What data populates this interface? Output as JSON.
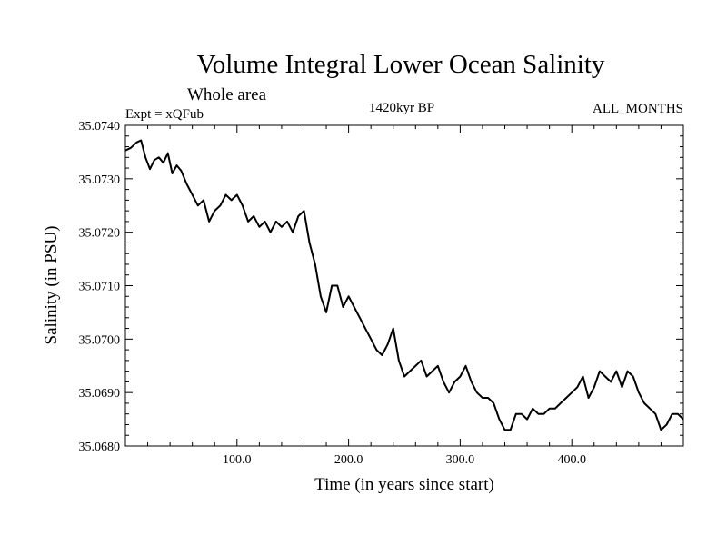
{
  "chart_data": {
    "type": "line",
    "title": "Volume Integral Lower Ocean Salinity",
    "subtitle": "Whole area",
    "experiment_label": "Expt = xQFub",
    "period_label": "1420kyr BP",
    "months_label": "ALL_MONTHS",
    "xlabel": "Time (in years since start)",
    "ylabel": "Salinity (in PSU)",
    "xlim": [
      0,
      500
    ],
    "ylim": [
      35.068,
      35.074
    ],
    "x_ticks": [
      100,
      200,
      300,
      400
    ],
    "x_tick_labels": [
      "100.0",
      "200.0",
      "300.0",
      "400.0"
    ],
    "y_ticks": [
      35.068,
      35.069,
      35.07,
      35.071,
      35.072,
      35.073,
      35.074
    ],
    "y_tick_labels": [
      "35.0680",
      "35.0690",
      "35.0700",
      "35.0710",
      "35.0720",
      "35.0730",
      "35.0740"
    ],
    "series": [
      {
        "name": "salinity",
        "x": [
          0,
          5,
          10,
          14,
          18,
          22,
          26,
          30,
          34,
          38,
          42,
          46,
          50,
          55,
          60,
          65,
          70,
          75,
          80,
          85,
          90,
          95,
          100,
          105,
          110,
          115,
          120,
          125,
          130,
          135,
          140,
          145,
          150,
          155,
          160,
          165,
          170,
          175,
          180,
          185,
          190,
          195,
          200,
          205,
          210,
          215,
          220,
          225,
          230,
          235,
          240,
          245,
          250,
          255,
          260,
          265,
          270,
          275,
          280,
          285,
          290,
          295,
          300,
          305,
          310,
          315,
          320,
          325,
          330,
          335,
          340,
          345,
          350,
          355,
          360,
          365,
          370,
          375,
          380,
          385,
          390,
          395,
          400,
          405,
          410,
          415,
          420,
          425,
          430,
          435,
          440,
          445,
          450,
          455,
          460,
          465,
          470,
          475,
          480,
          485,
          490,
          495,
          500
        ],
        "values": [
          35.07353,
          35.07358,
          35.07368,
          35.07372,
          35.0734,
          35.07318,
          35.07335,
          35.0734,
          35.0733,
          35.07348,
          35.0731,
          35.07325,
          35.07315,
          35.0729,
          35.0727,
          35.0725,
          35.0726,
          35.0722,
          35.0724,
          35.0725,
          35.0727,
          35.0726,
          35.0727,
          35.0725,
          35.0722,
          35.0723,
          35.0721,
          35.0722,
          35.072,
          35.0722,
          35.0721,
          35.0722,
          35.072,
          35.0723,
          35.0724,
          35.0718,
          35.0714,
          35.0708,
          35.0705,
          35.071,
          35.071,
          35.0706,
          35.0708,
          35.0706,
          35.0704,
          35.0702,
          35.07,
          35.0698,
          35.0697,
          35.0699,
          35.0702,
          35.0696,
          35.0693,
          35.0694,
          35.0695,
          35.0696,
          35.0693,
          35.0694,
          35.0695,
          35.0692,
          35.069,
          35.0692,
          35.0693,
          35.0695,
          35.0692,
          35.069,
          35.0689,
          35.0689,
          35.0688,
          35.0685,
          35.0683,
          35.0683,
          35.0686,
          35.0686,
          35.0685,
          35.0687,
          35.0686,
          35.0686,
          35.0687,
          35.0687,
          35.0688,
          35.0689,
          35.069,
          35.0691,
          35.0693,
          35.0689,
          35.0691,
          35.0694,
          35.0693,
          35.0692,
          35.0694,
          35.0691,
          35.0694,
          35.0693,
          35.069,
          35.0688,
          35.0687,
          35.0686,
          35.0683,
          35.0684,
          35.0686,
          35.0686,
          35.0685
        ]
      }
    ]
  }
}
